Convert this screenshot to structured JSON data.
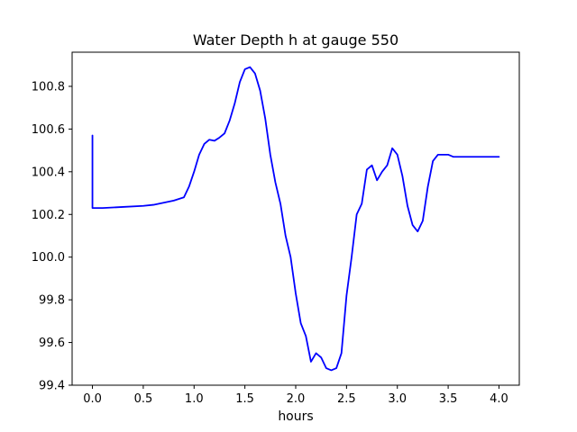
{
  "chart_data": {
    "type": "line",
    "title": "Water Depth h at gauge 550",
    "xlabel": "hours",
    "ylabel": "",
    "xlim": [
      -0.2,
      4.2
    ],
    "ylim": [
      99.4,
      100.96
    ],
    "grid": false,
    "line_color": "#0000ff",
    "xticks": [
      0.0,
      0.5,
      1.0,
      1.5,
      2.0,
      2.5,
      3.0,
      3.5,
      4.0
    ],
    "xtick_labels": [
      "0.0",
      "0.5",
      "1.0",
      "1.5",
      "2.0",
      "2.5",
      "3.0",
      "3.5",
      "4.0"
    ],
    "yticks": [
      99.4,
      99.6,
      99.8,
      100.0,
      100.2,
      100.4,
      100.6,
      100.8
    ],
    "ytick_labels": [
      "99.4",
      "99.6",
      "99.8",
      "100.0",
      "100.2",
      "100.4",
      "100.6",
      "100.8"
    ],
    "series": [
      {
        "x": [
          0.0,
          0.0,
          0.1,
          0.3,
          0.5,
          0.6,
          0.7,
          0.8,
          0.9,
          0.95,
          1.0,
          1.05,
          1.1,
          1.15,
          1.2,
          1.25,
          1.3,
          1.35,
          1.4,
          1.45,
          1.5,
          1.55,
          1.6,
          1.65,
          1.7,
          1.75,
          1.8,
          1.85,
          1.9,
          1.95,
          2.0,
          2.05,
          2.1,
          2.15,
          2.2,
          2.25,
          2.3,
          2.35,
          2.4,
          2.45,
          2.5,
          2.55,
          2.6,
          2.65,
          2.7,
          2.75,
          2.8,
          2.85,
          2.9,
          2.95,
          3.0,
          3.05,
          3.1,
          3.15,
          3.2,
          3.25,
          3.3,
          3.35,
          3.4,
          3.45,
          3.5,
          3.55,
          3.6,
          3.65,
          3.7,
          3.75,
          3.8,
          3.85,
          3.9,
          3.95,
          4.0
        ],
        "y": [
          100.57,
          100.23,
          100.23,
          100.235,
          100.24,
          100.245,
          100.255,
          100.265,
          100.28,
          100.33,
          100.4,
          100.48,
          100.53,
          100.55,
          100.545,
          100.56,
          100.58,
          100.64,
          100.72,
          100.82,
          100.88,
          100.89,
          100.86,
          100.78,
          100.65,
          100.48,
          100.35,
          100.25,
          100.1,
          100.0,
          99.83,
          99.69,
          99.63,
          99.51,
          99.55,
          99.53,
          99.48,
          99.47,
          99.48,
          99.55,
          99.82,
          100.0,
          100.2,
          100.25,
          100.41,
          100.43,
          100.36,
          100.4,
          100.43,
          100.51,
          100.48,
          100.38,
          100.24,
          100.15,
          100.12,
          100.17,
          100.33,
          100.45,
          100.48,
          100.48,
          100.48,
          100.47,
          100.47,
          100.47,
          100.47,
          100.47,
          100.47,
          100.47,
          100.47,
          100.47,
          100.47
        ]
      }
    ]
  }
}
